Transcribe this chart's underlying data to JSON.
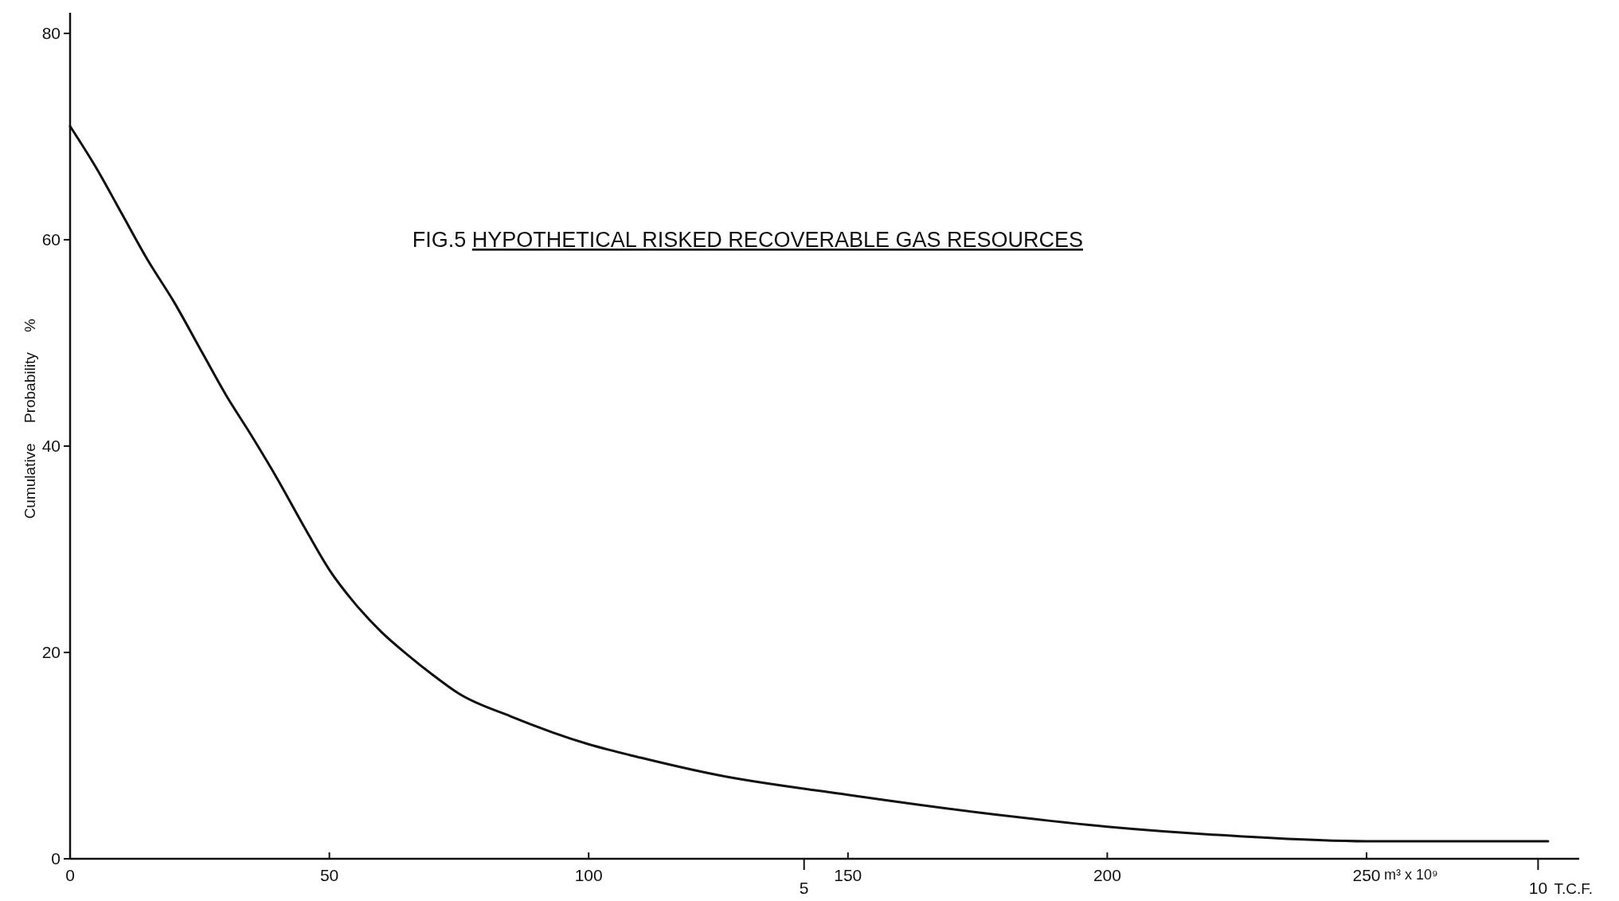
{
  "chart_data": {
    "type": "line",
    "title": "FIG.5 HYPOTHETICAL RISKED RECOVERABLE GAS RESOURCES",
    "xlabel": "m³ x 10⁹",
    "ylabel": "Cumulative Probability %",
    "x2label": "T.C.F.",
    "xlim": [
      0,
      291
    ],
    "xticks": [
      0,
      50,
      100,
      150,
      200,
      250
    ],
    "x2lim": [
      0,
      10.28
    ],
    "x2ticks": [
      5,
      10
    ],
    "ylim": [
      0,
      82
    ],
    "yticks": [
      0,
      20,
      40,
      60,
      80
    ],
    "grid": false,
    "marker": "none",
    "line_style": "solid",
    "series": [
      {
        "color": "#111111",
        "x": [
          0,
          5,
          10,
          15,
          20,
          25,
          30,
          35,
          40,
          45,
          50,
          55,
          60,
          65,
          70,
          75,
          85,
          100,
          110,
          125,
          150,
          175,
          200,
          225,
          250,
          285
        ],
        "values": [
          71,
          67,
          62.5,
          58,
          54,
          49.5,
          45,
          41,
          36.8,
          32.3,
          28,
          24.7,
          22,
          19.8,
          17.8,
          16,
          13.8,
          11.1,
          9.8,
          8.1,
          6.2,
          4.5,
          3.1,
          2.2,
          1.7,
          1.7
        ]
      }
    ]
  }
}
